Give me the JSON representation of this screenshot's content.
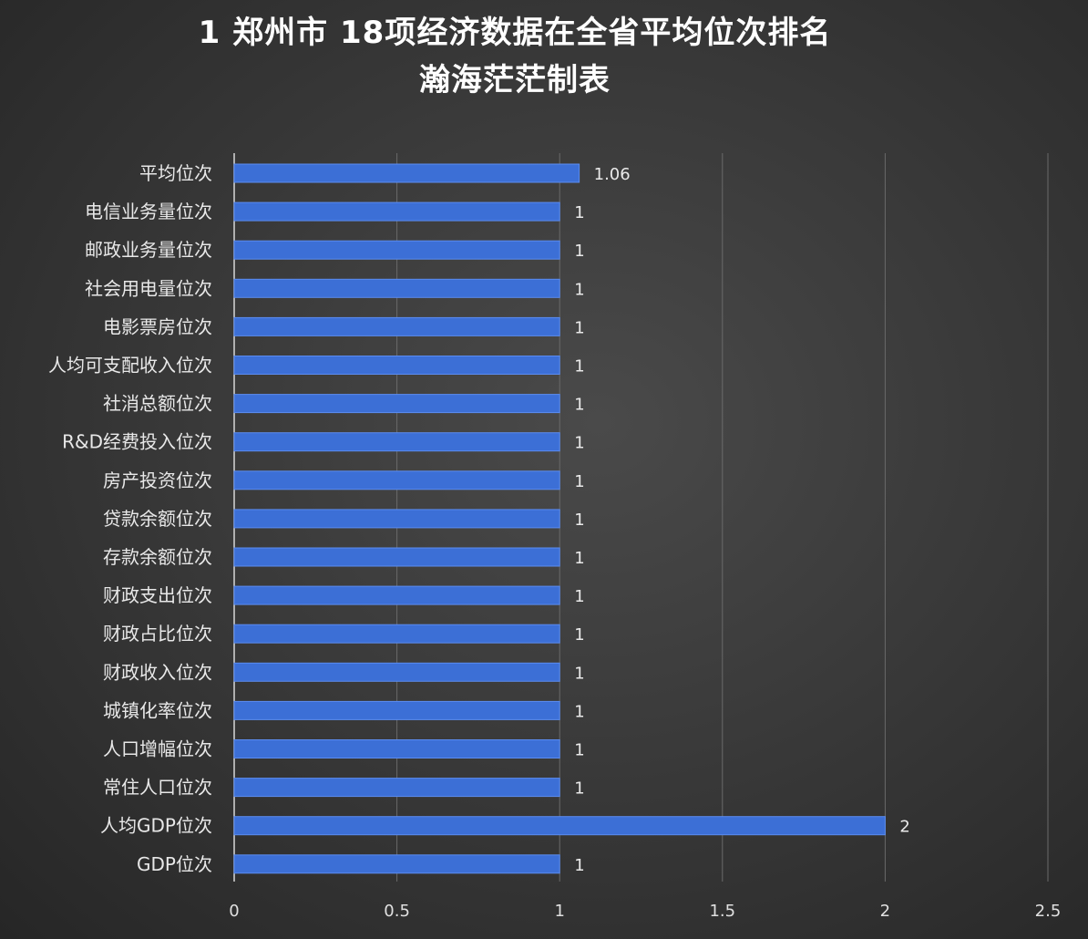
{
  "title": "1 郑州市 18项经济数据在全省平均位次排名",
  "subtitle": "瀚海茫茫制表",
  "colors": {
    "bar": "#3c6fd6",
    "bar_edge": "#5b8cf0",
    "grid": "#6a6a6a",
    "background": "#333333"
  },
  "chart_data": {
    "type": "bar",
    "orientation": "horizontal",
    "title": "1 郑州市 18项经济数据在全省平均位次排名",
    "subtitle": "瀚海茫茫制表",
    "categories": [
      "平均位次",
      "电信业务量位次",
      "邮政业务量位次",
      "社会用电量位次",
      "电影票房位次",
      "人均可支配收入位次",
      "社消总额位次",
      "R&D经费投入位次",
      "房产投资位次",
      "贷款余额位次",
      "存款余额位次",
      "财政支出位次",
      "财政占比位次",
      "财政收入位次",
      "城镇化率位次",
      "人口增幅位次",
      "常住人口位次",
      "人均GDP位次",
      "GDP位次"
    ],
    "values": [
      1.06,
      1,
      1,
      1,
      1,
      1,
      1,
      1,
      1,
      1,
      1,
      1,
      1,
      1,
      1,
      1,
      1,
      2,
      1
    ],
    "value_labels": [
      "1.06",
      "1",
      "1",
      "1",
      "1",
      "1",
      "1",
      "1",
      "1",
      "1",
      "1",
      "1",
      "1",
      "1",
      "1",
      "1",
      "1",
      "2",
      "1"
    ],
    "xlim": [
      0,
      2.5
    ],
    "xticks": [
      0,
      0.5,
      1,
      1.5,
      2,
      2.5
    ],
    "xtick_labels": [
      "0",
      "0.5",
      "1",
      "1.5",
      "2",
      "2.5"
    ],
    "xlabel": "",
    "ylabel": "",
    "grid": "vertical",
    "legend": "none"
  }
}
